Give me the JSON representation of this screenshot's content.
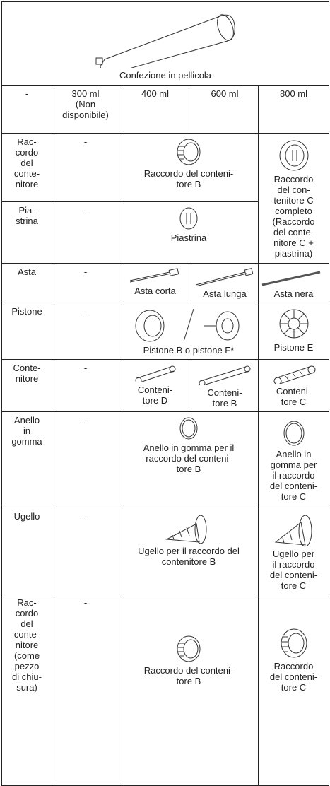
{
  "header": {
    "caption": "Confezione in pellicola"
  },
  "columns": [
    [
      "-"
    ],
    [
      "300 ml",
      "(Non",
      "disponibile)"
    ],
    [
      "400 ml"
    ],
    [
      "600 ml"
    ],
    [
      "800 ml"
    ]
  ],
  "rows": [
    {
      "label": [
        "Rac-",
        "cordo",
        "del",
        "conte-",
        "nitore"
      ],
      "cells": [
        [
          "-"
        ],
        [
          "Raccordo del conteni-",
          "tore B"
        ],
        [
          "Raccordo",
          "del con-",
          "tenitore C",
          "completo",
          "(Raccordo",
          "del conte-",
          "nitore C +",
          "piastrina)"
        ]
      ]
    },
    {
      "label": [
        "Pia-",
        "strina"
      ],
      "cells": [
        [
          "-"
        ],
        [
          "Piastrina"
        ]
      ]
    },
    {
      "label": [
        "Asta"
      ],
      "cells": [
        [
          "-"
        ],
        [
          "Asta corta"
        ],
        [
          "Asta lunga"
        ],
        [
          "Asta nera"
        ]
      ]
    },
    {
      "label": [
        "Pistone"
      ],
      "cells": [
        [
          "-"
        ],
        [
          "Pistone B o pistone F*"
        ],
        [
          "Pistone E"
        ]
      ]
    },
    {
      "label": [
        "Conte-",
        "nitore"
      ],
      "cells": [
        [
          "-"
        ],
        [
          "Conteni-",
          "tore D"
        ],
        [
          "Conteni-",
          "tore B"
        ],
        [
          "Conteni-",
          "tore C"
        ]
      ]
    },
    {
      "label": [
        "Anello",
        "in",
        "gomma"
      ],
      "cells": [
        [
          "-"
        ],
        [
          "Anello in gomma per il",
          "raccordo del conteni-",
          "tore B"
        ],
        [
          "Anello in",
          "gomma per",
          "il raccordo",
          "del conteni-",
          "tore C"
        ]
      ]
    },
    {
      "label": [
        "Ugello"
      ],
      "cells": [
        [
          "-"
        ],
        [
          "Ugello per il raccordo del",
          "contenitore B"
        ],
        [
          "Ugello per",
          "il raccordo",
          "del conteni-",
          "tore C"
        ]
      ]
    },
    {
      "label": [
        "Rac-",
        "cordo",
        "del",
        "conte-",
        "nitore",
        "(come",
        "pezzo",
        "di chiu-",
        "sura)"
      ],
      "cells": [
        [
          "-"
        ],
        [
          "Raccordo del conteni-",
          "tore B"
        ],
        [
          "Raccordo",
          "del conteni-",
          "tore C"
        ]
      ]
    }
  ]
}
